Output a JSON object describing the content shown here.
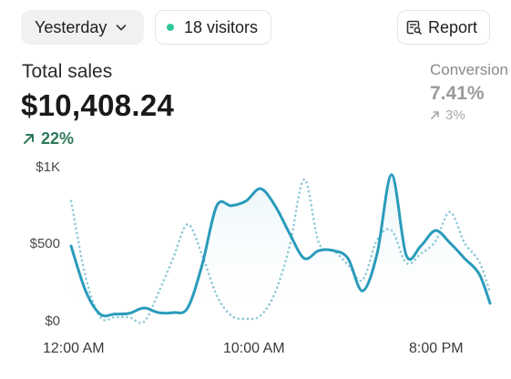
{
  "toolbar": {
    "date_filter_label": "Yesterday",
    "visitors_label": "18 visitors",
    "report_label": "Report"
  },
  "summary": {
    "total_sales_label": "Total sales",
    "total_sales_value": "$10,408.24",
    "total_sales_change": "22%",
    "conversion_label": "Conversion",
    "conversion_value": "7.41%",
    "conversion_change": "3%"
  },
  "colors": {
    "accent_line": "#2a9bbb",
    "comparison_line": "#8ec9d8",
    "area_fill": "#e9f5f9",
    "positive": "#2f7a5a",
    "live_dot": "#2ec79a"
  },
  "chart_data": {
    "type": "line",
    "y_ticks": [
      "$1K",
      "$500",
      "$0"
    ],
    "x_ticks": [
      "12:00 AM",
      "10:00 AM",
      "8:00 PM"
    ],
    "ylim": [
      0,
      1000
    ],
    "xlim": [
      0,
      23
    ],
    "grid": false,
    "series": [
      {
        "style": "solid",
        "x": [
          0,
          0.8,
          1.6,
          2.4,
          3.2,
          4,
          4.8,
          5.6,
          6.4,
          7.2,
          8,
          8.8,
          9.6,
          10.4,
          11.2,
          12,
          12.8,
          13.6,
          14.4,
          15.2,
          16,
          16.8,
          17.6,
          18.4,
          19.2,
          20,
          20.8,
          21.6,
          22.4,
          23
        ],
        "values": [
          500,
          210,
          60,
          60,
          65,
          100,
          70,
          70,
          100,
          380,
          760,
          760,
          790,
          870,
          760,
          580,
          420,
          470,
          470,
          420,
          210,
          450,
          960,
          440,
          500,
          600,
          520,
          420,
          320,
          130
        ]
      },
      {
        "style": "dotted",
        "x": [
          0,
          0.8,
          1.6,
          2.4,
          3.2,
          4,
          4.8,
          5.6,
          6.4,
          7.2,
          8,
          8.8,
          9.6,
          10.4,
          11.2,
          12,
          12.8,
          13.6,
          14.4,
          15.2,
          16,
          16.8,
          17.6,
          18.4,
          19.2,
          20,
          20.8,
          21.6,
          22.4,
          23
        ],
        "values": [
          790,
          300,
          40,
          40,
          40,
          10,
          200,
          420,
          640,
          440,
          180,
          50,
          30,
          50,
          200,
          500,
          930,
          520,
          470,
          380,
          280,
          540,
          600,
          390,
          450,
          530,
          720,
          520,
          400,
          200
        ]
      }
    ]
  }
}
